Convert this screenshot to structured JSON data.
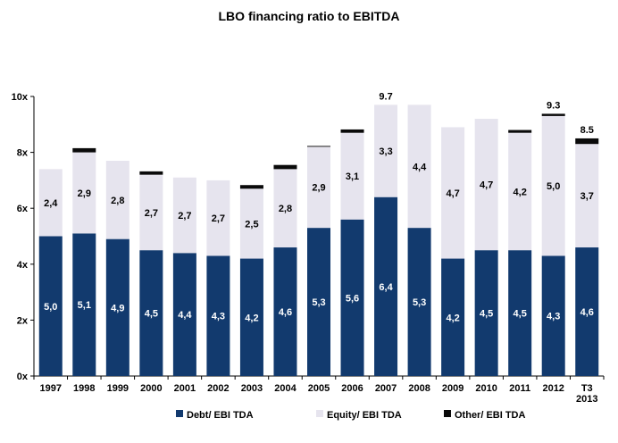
{
  "chart_data": {
    "type": "bar",
    "stacked": true,
    "title": "LBO financing ratio to EBITDA",
    "categories": [
      "1997",
      "1998",
      "1999",
      "2000",
      "2001",
      "2002",
      "2003",
      "2004",
      "2005",
      "2006",
      "2007",
      "2008",
      "2009",
      "2010",
      "2011",
      "2012",
      "T3\n2013"
    ],
    "ylim": [
      0,
      10
    ],
    "yticks": [
      "0x",
      "2x",
      "4x",
      "6x",
      "8x",
      "10x"
    ],
    "grid": false,
    "legend_placement": "bottom",
    "series": [
      {
        "name": "Debt/ EBI TDA",
        "color": "#123a6e",
        "values": [
          5.0,
          5.1,
          4.9,
          4.5,
          4.4,
          4.3,
          4.2,
          4.6,
          5.3,
          5.6,
          6.4,
          5.3,
          4.2,
          4.5,
          4.5,
          4.3,
          4.6
        ],
        "labels": [
          "5,0",
          "5,1",
          "4,9",
          "4,5",
          "4,4",
          "4,3",
          "4,2",
          "4,6",
          "5,3",
          "5,6",
          "6,4",
          "5,3",
          "4,2",
          "4,5",
          "4,5",
          "4,3",
          "4,6"
        ]
      },
      {
        "name": "Equity/ EBI TDA",
        "color": "#e6e4ee",
        "values": [
          2.4,
          2.9,
          2.8,
          2.7,
          2.7,
          2.7,
          2.5,
          2.8,
          2.9,
          3.1,
          3.3,
          4.4,
          4.7,
          4.7,
          4.2,
          5.0,
          3.7
        ],
        "labels": [
          "2,4",
          "2,9",
          "2,8",
          "2,7",
          "2,7",
          "2,7",
          "2,5",
          "2,8",
          "2,9",
          "3,1",
          "3,3",
          "4,4",
          "4,7",
          "4,7",
          "4,2",
          "5,0",
          "3,7"
        ]
      },
      {
        "name": "Other/ EBI TDA",
        "color": "#0a0a0a",
        "values": [
          0,
          0.15,
          0,
          0.12,
          0,
          0,
          0.13,
          0.15,
          0.03,
          0.12,
          0,
          0,
          0,
          0,
          0.1,
          0.08,
          0.2
        ]
      }
    ],
    "total_labels": [
      {
        "index": 10,
        "text": "9.7"
      },
      {
        "index": 15,
        "text": "9.3"
      },
      {
        "index": 16,
        "text": "8.5"
      }
    ]
  }
}
